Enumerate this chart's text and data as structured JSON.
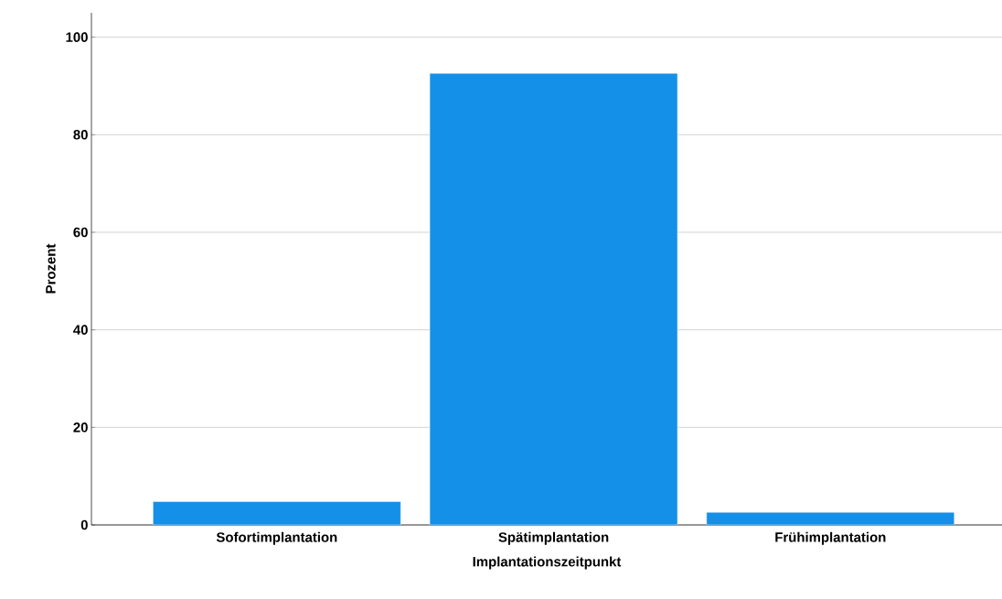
{
  "chart_data": {
    "type": "bar",
    "xlabel": "Implantationszeitpunkt",
    "ylabel": "Prozent",
    "categories": [
      "Sofortimplantation",
      "Spätimplantation",
      "Frühimplantation"
    ],
    "values": [
      4.8,
      92.6,
      2.6
    ],
    "color": "#1490e8",
    "ylim": [
      0,
      105
    ],
    "yticks": [
      0,
      20,
      40,
      60,
      80,
      100
    ],
    "grid": "y"
  }
}
